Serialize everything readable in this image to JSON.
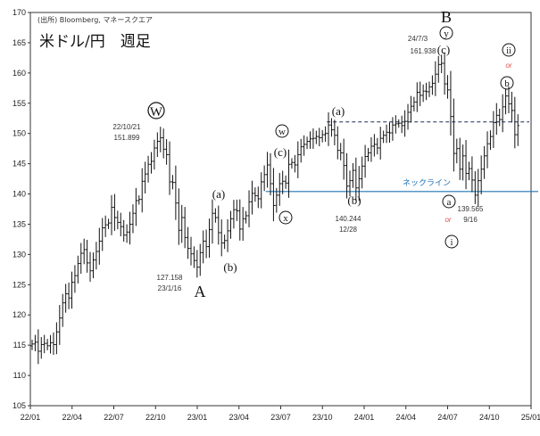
{
  "header": {
    "source": "(出所) Bloomberg, マネースクエア",
    "title": "米ドル/円　週足"
  },
  "colors": {
    "candle": "#111111",
    "neckline": "#1f77b4",
    "or_text": "#d9534f",
    "dashed": "#1a2a5a"
  },
  "chart_data": {
    "type": "candlestick",
    "title": "米ドル/円　週足",
    "ylim": [
      105,
      170
    ],
    "yticks": [
      105,
      110,
      115,
      120,
      125,
      130,
      135,
      140,
      145,
      150,
      155,
      160,
      165,
      170
    ],
    "xticks": [
      "22/01",
      "22/04",
      "22/07",
      "22/10",
      "23/01",
      "23/04",
      "23/07",
      "23/10",
      "24/01",
      "24/04",
      "24/07",
      "24/10",
      "25/01"
    ],
    "grid": false,
    "series": [
      {
        "values": [
          115.2,
          115.5,
          114.0,
          115.1,
          115.3,
          114.9,
          115.4,
          115.1,
          117.2,
          119.5,
          122.0,
          123.5,
          122.8,
          125.4,
          126.5,
          128.5,
          130.2,
          130.8,
          128.6,
          127.3,
          129.1,
          130.5,
          132.2,
          134.4,
          134.9,
          135.2,
          137.8,
          136.1,
          135.3,
          134.6,
          133.2,
          133.7,
          135.0,
          136.8,
          138.9,
          139.1,
          142.1,
          143.3,
          144.9,
          145.4,
          147.6,
          148.7,
          149.3,
          147.4,
          146.5,
          142.0,
          141.9,
          138.5,
          134.0,
          136.1,
          132.8,
          131.0,
          130.1,
          129.0,
          127.9,
          130.3,
          132.2,
          131.3,
          134.1,
          136.8,
          136.1,
          133.6,
          131.9,
          132.3,
          133.9,
          135.9,
          137.4,
          137.2,
          134.2,
          135.9,
          136.4,
          138.7,
          140.1,
          139.7,
          139.2,
          142.0,
          143.2,
          144.8,
          141.7,
          138.1,
          139.8,
          141.7,
          142.1,
          141.8,
          144.9,
          145.2,
          144.8,
          146.5,
          147.8,
          148.2,
          148.7,
          149.1,
          149.2,
          149.5,
          149.3,
          149.8,
          150.0,
          151.4,
          150.6,
          149.7,
          147.2,
          146.8,
          144.7,
          141.3,
          142.2,
          143.9,
          141.0,
          142.5,
          144.6,
          146.2,
          146.8,
          147.9,
          148.2,
          147.6,
          149.2,
          149.7,
          150.2,
          150.1,
          151.4,
          151.6,
          151.7,
          151.3,
          152.0,
          153.5,
          154.5,
          155.2,
          156.8,
          156.3,
          157.0,
          156.9,
          157.7,
          158.3,
          159.8,
          161.4,
          161.6,
          158.2,
          157.2,
          152.8,
          146.7,
          147.5,
          144.1,
          146.3,
          143.4,
          144.2,
          142.3,
          139.8,
          142.2,
          144.1,
          146.3,
          148.3,
          149.5,
          151.8,
          153.0,
          152.3,
          154.4,
          156.2,
          154.9,
          153.8,
          149.8,
          151.3
        ]
      }
    ],
    "annotations": {
      "w_top": "22/10/21\n151.899",
      "a_low": "127.158\n23/1/16",
      "b_top": "24/7/3\n161.938",
      "x_low": "140.244\n12/28",
      "a2_low": "139.565\n9/16",
      "neckline_label": "ネックライン",
      "neckline_value": 140.4,
      "dashed_level": 151.9
    }
  },
  "labels": {
    "W": "W",
    "A": "A",
    "B": "B",
    "a1": "(a)",
    "b1": "(b)",
    "c1": "(c)",
    "w": "w",
    "x": "x",
    "a2": "(a)",
    "b2": "(b)",
    "y": "y",
    "c2": "(c)",
    "a_circ": "a",
    "b_circ": "b",
    "i": "i",
    "ii": "ii",
    "or1": "or",
    "or2": "or",
    "w_top_line1": "22/10/21",
    "w_top_line2": "151.899",
    "a_low_line1": "127.158",
    "a_low_line2": "23/1/16",
    "b_top_line1": "24/7/3",
    "b_top_line2": "161.938",
    "x_low_line1": "140.244",
    "x_low_line2": "12/28",
    "a2_low_line1": "139.565",
    "a2_low_line2": "9/16"
  }
}
